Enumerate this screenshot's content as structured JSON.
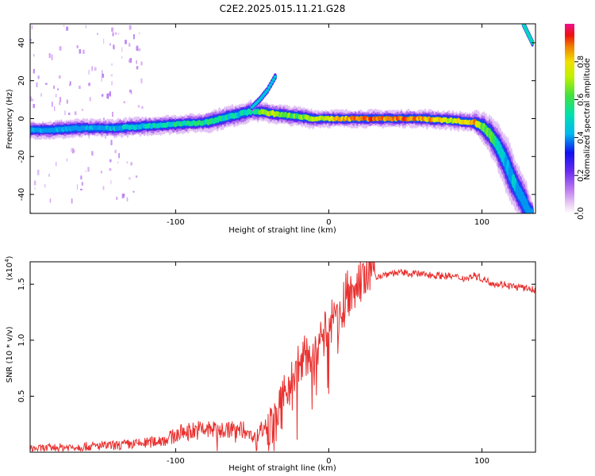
{
  "title": "C2E2.2025.015.11.21.G28",
  "colors": {
    "snr_line": "#e8312f",
    "axis": "#000000"
  },
  "chart_data": [
    {
      "type": "heatmap",
      "xlabel": "Height of straight line (km)",
      "ylabel": "Frequency (Hz)",
      "xlim": [
        -195,
        135
      ],
      "ylim": [
        -50,
        50
      ],
      "xticks": [
        -100,
        0,
        100
      ],
      "xtick_labels": [
        "-100",
        "0",
        "100"
      ],
      "yticks": [
        -40,
        -20,
        0,
        20,
        40
      ],
      "ytick_labels": [
        "-40",
        "-20",
        "0",
        "20",
        "40"
      ],
      "colorbar": {
        "label": "Normalized spectral amplitude",
        "range": [
          0,
          1
        ],
        "ticks": [
          0.0,
          0.2,
          0.4,
          0.6,
          0.8
        ],
        "tick_labels": [
          "0.0",
          "0.2",
          "0.4",
          "0.6",
          "0.8"
        ]
      },
      "ridge": {
        "description": "Doppler ridge: frequency (Hz) vs height (km)",
        "x": [
          -195,
          -180,
          -160,
          -140,
          -120,
          -100,
          -80,
          -70,
          -60,
          -50,
          -40,
          -30,
          -20,
          -10,
          0,
          20,
          40,
          60,
          80,
          95,
          100,
          105,
          110,
          115,
          120,
          125,
          130,
          133
        ],
        "y": [
          -6,
          -6,
          -5,
          -5,
          -4,
          -3,
          -2,
          0,
          2,
          4,
          3,
          2,
          1,
          0,
          0,
          0,
          0,
          0,
          -1,
          -2,
          -4,
          -8,
          -14,
          -22,
          -32,
          -40,
          -48,
          -50
        ],
        "amplitude": [
          0.45,
          0.45,
          0.45,
          0.5,
          0.55,
          0.6,
          0.6,
          0.6,
          0.55,
          0.55,
          0.8,
          0.75,
          0.7,
          0.8,
          0.85,
          0.95,
          0.95,
          0.95,
          0.8,
          0.95,
          0.7,
          0.7,
          0.6,
          0.55,
          0.5,
          0.45,
          0.45,
          0.45
        ]
      },
      "secondary_branch": {
        "x": [
          -50,
          -45,
          -40,
          -35
        ],
        "y": [
          6,
          10,
          15,
          22
        ]
      },
      "upper_branch": {
        "x": [
          127,
          130,
          133
        ],
        "y": [
          50,
          45,
          40
        ]
      }
    },
    {
      "type": "line",
      "xlabel": "Height of straight line (km)",
      "ylabel": "SNR (10 * v/v)",
      "y_scale_label": "(x10",
      "y_scale_exponent": "4",
      "xlim": [
        -195,
        135
      ],
      "ylim": [
        0,
        1.7
      ],
      "xticks": [
        -100,
        0,
        100
      ],
      "xtick_labels": [
        "-100",
        "0",
        "100"
      ],
      "yticks": [
        0.5,
        1.0,
        1.5
      ],
      "ytick_labels": [
        "0.5",
        "1.0",
        "1.5"
      ],
      "series": [
        {
          "name": "SNR",
          "x": [
            -195,
            -180,
            -160,
            -140,
            -120,
            -105,
            -95,
            -85,
            -75,
            -65,
            -55,
            -48,
            -42,
            -38,
            -34,
            -30,
            -28,
            -26,
            -24,
            -22,
            -20,
            -18,
            -15,
            -12,
            -10,
            -6,
            -3,
            0,
            3,
            6,
            9,
            12,
            15,
            18,
            21,
            24,
            27,
            30,
            35,
            40,
            50,
            60,
            70,
            80,
            90,
            95,
            100,
            105,
            110,
            115,
            120,
            125,
            130,
            135
          ],
          "y": [
            0.03,
            0.04,
            0.05,
            0.06,
            0.08,
            0.12,
            0.18,
            0.2,
            0.2,
            0.2,
            0.2,
            0.12,
            0.25,
            0.22,
            0.3,
            0.45,
            0.55,
            0.6,
            0.7,
            0.65,
            0.8,
            0.85,
            0.85,
            0.9,
            0.85,
            1.0,
            1.05,
            1.1,
            1.2,
            1.15,
            1.3,
            1.45,
            1.4,
            1.5,
            1.52,
            1.55,
            1.56,
            1.57,
            1.58,
            1.6,
            1.6,
            1.59,
            1.58,
            1.57,
            1.55,
            1.58,
            1.55,
            1.52,
            1.5,
            1.5,
            1.48,
            1.47,
            1.46,
            1.45
          ]
        }
      ]
    }
  ]
}
